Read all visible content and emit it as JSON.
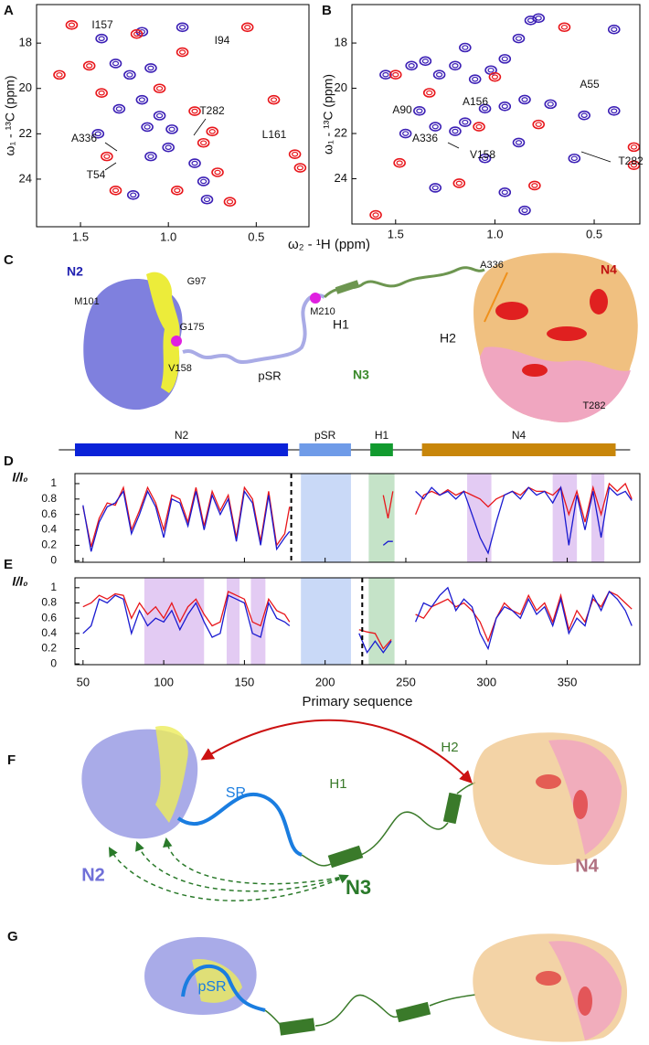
{
  "chart_data": [
    {
      "type": "scatter",
      "panel": "A",
      "ylabel": "ω₁ - ¹³C (ppm)",
      "xlim": [
        1.75,
        0.2
      ],
      "xticks": [
        1.5,
        {
          "value": 1,
          "label": "1.0"
        },
        0.5
      ],
      "ylim": [
        26.1,
        16.3
      ],
      "yticks": [
        18,
        20,
        22,
        24
      ],
      "annotations": [
        "I157",
        "I94",
        "T282",
        "L161",
        "A336",
        "T54"
      ],
      "series": [
        {
          "color": "#3b1fb5",
          "x": [
            1.38,
            1.3,
            1.22,
            1.1,
            1.15,
            1.05,
            1.12,
            0.98,
            1.0,
            1.1,
            0.85,
            0.8,
            0.78,
            1.2,
            1.4,
            1.28,
            0.92,
            1.15
          ],
          "values": [
            17.8,
            18.9,
            19.4,
            19.1,
            20.5,
            21.2,
            21.7,
            21.8,
            22.6,
            23.0,
            23.3,
            24.1,
            24.9,
            24.7,
            22.0,
            20.9,
            17.3,
            17.5
          ]
        },
        {
          "color": "#e8161b",
          "x": [
            1.55,
            1.45,
            1.62,
            1.38,
            1.18,
            0.92,
            0.85,
            0.75,
            0.8,
            0.72,
            0.4,
            0.28,
            0.25,
            0.95,
            0.65,
            1.3,
            0.55,
            1.05,
            1.35
          ],
          "values": [
            17.2,
            19.0,
            19.4,
            20.2,
            17.6,
            18.4,
            21.0,
            21.9,
            22.4,
            23.7,
            20.5,
            22.9,
            23.5,
            24.5,
            25.0,
            24.5,
            17.3,
            20.0,
            23.0
          ]
        }
      ]
    },
    {
      "type": "scatter",
      "panel": "B",
      "ylabel": "ω₁ - ¹³C (ppm)",
      "xlim": [
        1.72,
        0.27
      ],
      "xticks": [
        1.5,
        {
          "value": 1,
          "label": "1.0"
        },
        0.5
      ],
      "ylim": [
        26.0,
        16.3
      ],
      "yticks": [
        18,
        20,
        22,
        24
      ],
      "annotations": [
        "A156",
        "A55",
        "A90",
        "A336",
        "V158",
        "T282"
      ],
      "series": [
        {
          "color": "#3b1fb5",
          "x": [
            1.55,
            1.42,
            1.35,
            1.28,
            1.2,
            1.1,
            1.02,
            0.95,
            0.88,
            0.82,
            0.78,
            1.38,
            1.3,
            1.2,
            1.15,
            1.05,
            0.95,
            0.85,
            0.72,
            0.55,
            0.4,
            0.88,
            1.05,
            1.45,
            1.3,
            0.95,
            0.6,
            0.85,
            0.4,
            1.15
          ],
          "values": [
            19.4,
            19.0,
            18.8,
            19.4,
            19.0,
            19.6,
            19.2,
            18.7,
            17.8,
            17.0,
            16.9,
            21.0,
            21.7,
            21.9,
            21.5,
            20.9,
            20.8,
            20.5,
            20.7,
            21.2,
            21.0,
            22.4,
            23.1,
            22.0,
            24.4,
            24.6,
            23.1,
            25.4,
            17.4,
            18.2
          ]
        },
        {
          "color": "#e8161b",
          "x": [
            1.5,
            1.33,
            1.0,
            1.48,
            1.18,
            0.8,
            0.78,
            0.3,
            0.3,
            1.08,
            0.65,
            1.6
          ],
          "values": [
            19.4,
            20.2,
            19.5,
            23.3,
            24.2,
            24.3,
            21.6,
            22.6,
            23.4,
            21.7,
            17.3,
            25.6
          ]
        }
      ]
    },
    {
      "type": "line",
      "panel": "D",
      "ylabel": "I/I₀",
      "xtick_labels": false,
      "xlim": [
        45,
        395
      ],
      "xticks": [
        50,
        100,
        150,
        200,
        250,
        300,
        350
      ],
      "ylim": [
        -0.02,
        1.13
      ],
      "yticks": [
        0,
        0.2,
        0.4,
        0.6,
        0.8,
        1
      ],
      "shaded": [
        {
          "range": [
            185,
            216
          ],
          "color": "#c9d9f7"
        },
        {
          "range": [
            227,
            243
          ],
          "color": "#c5e3c8"
        },
        {
          "range": [
            288,
            303
          ],
          "color": "#e3cbf3"
        },
        {
          "range": [
            341,
            356
          ],
          "color": "#e3cbf3"
        },
        {
          "range": [
            365,
            373
          ],
          "color": "#e3cbf3"
        }
      ],
      "divider": 179,
      "x": [
        50,
        55,
        60,
        65,
        70,
        75,
        80,
        85,
        90,
        95,
        100,
        105,
        110,
        115,
        120,
        125,
        130,
        135,
        140,
        145,
        150,
        155,
        160,
        165,
        170,
        175,
        178,
        200,
        236,
        239,
        242,
        248,
        256,
        261,
        266,
        271,
        276,
        281,
        286,
        291,
        296,
        301,
        306,
        311,
        316,
        321,
        326,
        331,
        336,
        341,
        346,
        351,
        356,
        361,
        366,
        371,
        376,
        381,
        386,
        390
      ],
      "series": [
        {
          "color": "#e8161b",
          "values": [
            0.7,
            0.18,
            0.55,
            0.75,
            0.72,
            0.95,
            0.4,
            0.65,
            0.95,
            0.75,
            0.4,
            0.85,
            0.8,
            0.5,
            0.95,
            0.45,
            0.9,
            0.65,
            0.85,
            0.3,
            0.95,
            0.8,
            0.25,
            0.9,
            0.2,
            0.35,
            0.7,
            null,
            0.85,
            0.55,
            0.9,
            null,
            0.6,
            0.85,
            0.9,
            0.85,
            0.92,
            0.85,
            0.9,
            0.85,
            0.8,
            0.7,
            0.8,
            0.85,
            0.9,
            0.85,
            0.95,
            0.9,
            0.9,
            0.85,
            0.95,
            0.6,
            0.9,
            0.5,
            0.95,
            0.6,
            1.0,
            0.9,
            1.0,
            0.8
          ]
        },
        {
          "color": "#1a1ad0",
          "values": [
            0.72,
            0.12,
            0.5,
            0.7,
            0.75,
            0.9,
            0.35,
            0.6,
            0.9,
            0.7,
            0.3,
            0.8,
            0.75,
            0.45,
            0.9,
            0.4,
            0.85,
            0.6,
            0.8,
            0.25,
            0.9,
            0.75,
            0.2,
            0.85,
            0.15,
            0.3,
            0.38,
            null,
            0.2,
            0.25,
            0.25,
            null,
            0.9,
            0.8,
            0.95,
            0.85,
            0.9,
            0.8,
            0.9,
            0.6,
            0.3,
            0.1,
            0.5,
            0.85,
            0.9,
            0.8,
            0.95,
            0.85,
            0.9,
            0.75,
            0.95,
            0.2,
            0.85,
            0.4,
            0.9,
            0.3,
            0.95,
            0.85,
            0.9,
            0.78
          ]
        }
      ]
    },
    {
      "type": "line",
      "panel": "E",
      "ylabel": "I/I₀",
      "xlabel": "Primary sequence",
      "xlim": [
        45,
        395
      ],
      "xticks": [
        50,
        100,
        150,
        200,
        250,
        300,
        350
      ],
      "ylim": [
        -0.01,
        1.13
      ],
      "yticks": [
        0,
        0.2,
        0.4,
        0.6,
        0.8,
        1
      ],
      "shaded": [
        {
          "range": [
            88,
            125
          ],
          "color": "#e3cbf3"
        },
        {
          "range": [
            139,
            147
          ],
          "color": "#e3cbf3"
        },
        {
          "range": [
            154,
            163
          ],
          "color": "#e3cbf3"
        },
        {
          "range": [
            185,
            216
          ],
          "color": "#c9d9f7"
        },
        {
          "range": [
            227,
            243
          ],
          "color": "#c5e3c8"
        }
      ],
      "divider": 223,
      "x": [
        50,
        55,
        60,
        65,
        70,
        75,
        80,
        85,
        90,
        95,
        100,
        105,
        110,
        115,
        120,
        125,
        130,
        135,
        140,
        145,
        150,
        155,
        160,
        165,
        170,
        175,
        178,
        200,
        221,
        226,
        231,
        236,
        241,
        248,
        256,
        261,
        266,
        271,
        276,
        281,
        286,
        291,
        296,
        301,
        306,
        311,
        316,
        321,
        326,
        331,
        336,
        341,
        346,
        351,
        356,
        361,
        366,
        371,
        376,
        381,
        386,
        390
      ],
      "series": [
        {
          "color": "#e8161b",
          "values": [
            0.75,
            0.8,
            0.9,
            0.85,
            0.92,
            0.9,
            0.6,
            0.8,
            0.65,
            0.75,
            0.6,
            0.8,
            0.55,
            0.75,
            0.85,
            0.65,
            0.5,
            0.55,
            0.95,
            0.9,
            0.85,
            0.55,
            0.5,
            0.85,
            0.7,
            0.65,
            0.55,
            null,
            0.45,
            0.42,
            0.4,
            0.2,
            0.32,
            null,
            0.65,
            0.6,
            0.75,
            0.8,
            0.85,
            0.75,
            0.8,
            0.7,
            0.55,
            0.3,
            0.6,
            0.8,
            0.7,
            0.65,
            0.9,
            0.7,
            0.8,
            0.55,
            0.9,
            0.45,
            0.7,
            0.55,
            0.85,
            0.75,
            0.95,
            0.9,
            0.8,
            0.72
          ]
        },
        {
          "color": "#1a1ad0",
          "values": [
            0.4,
            0.5,
            0.85,
            0.8,
            0.9,
            0.85,
            0.4,
            0.7,
            0.5,
            0.6,
            0.55,
            0.7,
            0.45,
            0.65,
            0.8,
            0.55,
            0.35,
            0.4,
            0.9,
            0.85,
            0.8,
            0.4,
            0.35,
            0.8,
            0.6,
            0.55,
            0.5,
            null,
            0.4,
            0.15,
            0.3,
            0.15,
            0.3,
            null,
            0.55,
            0.8,
            0.75,
            0.9,
            1.0,
            0.7,
            0.85,
            0.75,
            0.4,
            0.2,
            0.6,
            0.75,
            0.7,
            0.6,
            0.85,
            0.65,
            0.75,
            0.5,
            0.85,
            0.4,
            0.6,
            0.5,
            0.9,
            0.7,
            0.95,
            0.85,
            0.7,
            0.5
          ]
        }
      ]
    }
  ],
  "figure": {
    "spectrum_xlabel": "ω₂ - ¹H  (ppm)",
    "panel_labels": [
      "C",
      "F",
      "G"
    ],
    "panel_c": [
      "N2",
      "M101",
      "G97",
      "G175",
      "V158",
      "M210",
      "H1",
      "H2",
      "A336",
      "N4",
      "T282",
      "pSR",
      "N3"
    ],
    "domain_bar": {
      "sequence_range": [
        35,
        389
      ],
      "domains": [
        {
          "label": "N2",
          "start": 45,
          "end": 177,
          "color": "#0a22d8"
        },
        {
          "label": "pSR",
          "start": 184,
          "end": 216,
          "color": "#6f9be8"
        },
        {
          "label": "H1",
          "start": 228,
          "end": 242,
          "color": "#119a2e"
        },
        {
          "label": "N4",
          "start": 260,
          "end": 380,
          "color": "#c8860a"
        }
      ]
    },
    "panel_f": [
      "SR",
      "H1",
      "H2",
      "N2",
      "N3",
      "N4"
    ],
    "panel_g": [
      "pSR"
    ]
  }
}
